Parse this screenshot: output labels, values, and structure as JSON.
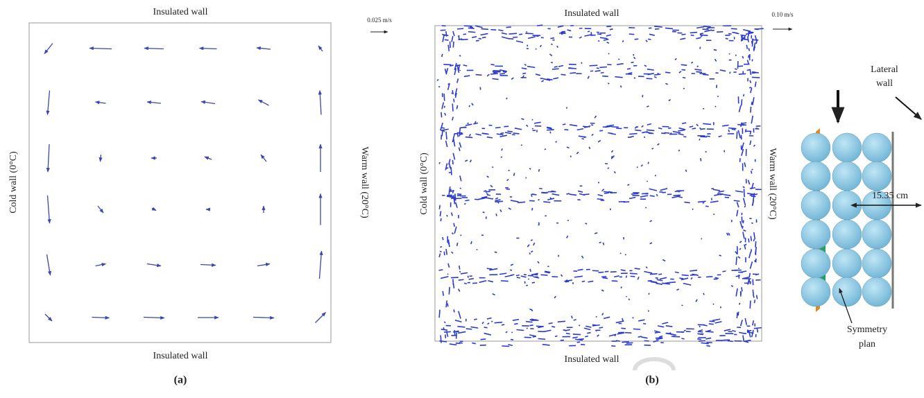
{
  "panel_a": {
    "top_label": "Insulated wall",
    "bottom_label": "Insulated wall",
    "left_label": "Cold wall (0°C)",
    "right_label": "Warm wall (20°C)",
    "scale": {
      "value": 0.025,
      "label": "0.025 m/s"
    },
    "caption": "(a)",
    "vectors": [
      [
        [
          -0.012,
          -0.015
        ],
        [
          -0.032,
          0.001
        ],
        [
          -0.028,
          0.001
        ],
        [
          -0.025,
          0.001
        ],
        [
          -0.02,
          0.002
        ],
        [
          -0.006,
          0.008
        ]
      ],
      [
        [
          -0.003,
          -0.035
        ],
        [
          -0.015,
          0.002
        ],
        [
          -0.02,
          0.002
        ],
        [
          -0.02,
          0.003
        ],
        [
          -0.015,
          0.008
        ],
        [
          -0.002,
          0.035
        ]
      ],
      [
        [
          -0.002,
          -0.04
        ],
        [
          -0.001,
          -0.01
        ],
        [
          -0.008,
          0.0
        ],
        [
          -0.01,
          0.004
        ],
        [
          -0.008,
          0.01
        ],
        [
          0.0,
          0.04
        ]
      ],
      [
        [
          0.003,
          -0.04
        ],
        [
          0.008,
          -0.01
        ],
        [
          0.006,
          -0.003
        ],
        [
          -0.006,
          0.0
        ],
        [
          0.0,
          0.01
        ],
        [
          0.0,
          0.045
        ]
      ],
      [
        [
          0.005,
          -0.03
        ],
        [
          0.015,
          0.003
        ],
        [
          0.02,
          -0.003
        ],
        [
          0.022,
          -0.001
        ],
        [
          0.018,
          0.003
        ],
        [
          0.003,
          0.04
        ]
      ],
      [
        [
          0.01,
          -0.01
        ],
        [
          0.025,
          -0.001
        ],
        [
          0.03,
          -0.001
        ],
        [
          0.03,
          0.0
        ],
        [
          0.03,
          -0.001
        ],
        [
          0.015,
          0.015
        ]
      ]
    ]
  },
  "panel_b": {
    "top_label": "Insulated wall",
    "bottom_label": "Insulated wall",
    "left_label": "Cold wall (0°C)",
    "right_label": "Warm wall (20°C)",
    "scale": {
      "value": 0.1,
      "label": "0.10 m/s"
    },
    "caption": "(b)"
  },
  "panel_c": {
    "lateral_wall": [
      "Lateral",
      "wall"
    ],
    "dimension": "15.35 cm",
    "symmetry": [
      "Symmetry",
      "plan"
    ]
  }
}
